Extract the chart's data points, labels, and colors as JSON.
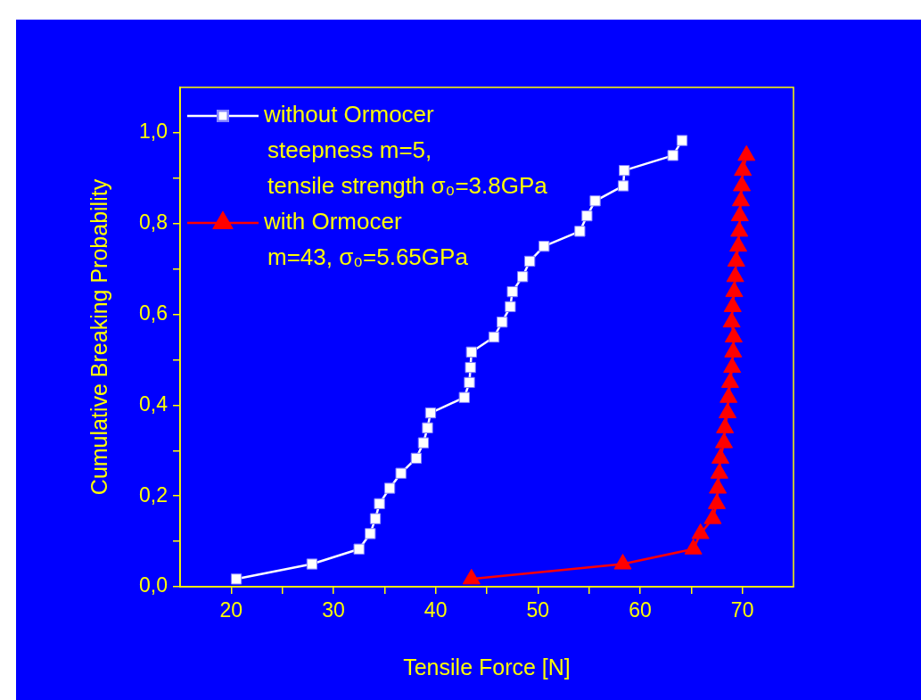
{
  "chart_data": {
    "type": "line",
    "xlabel": "Tensile Force [N]",
    "ylabel": "Cumulative Breaking Probability",
    "xlim": [
      15,
      75
    ],
    "xticks": [
      {
        "value": 20,
        "label": "20"
      },
      {
        "value": 25,
        "label": null
      },
      {
        "value": 30,
        "label": "30"
      },
      {
        "value": 35,
        "label": null
      },
      {
        "value": 40,
        "label": "40"
      },
      {
        "value": 45,
        "label": null
      },
      {
        "value": 50,
        "label": "50"
      },
      {
        "value": 55,
        "label": null
      },
      {
        "value": 60,
        "label": "60"
      },
      {
        "value": 65,
        "label": null
      },
      {
        "value": 70,
        "label": "70"
      }
    ],
    "ylim": [
      0,
      1.1
    ],
    "yticks": [
      {
        "value": 0,
        "label": "0,0"
      },
      {
        "value": 0.1,
        "label": null
      },
      {
        "value": 0.2,
        "label": "0,2"
      },
      {
        "value": 0.3,
        "label": null
      },
      {
        "value": 0.4,
        "label": "0,4"
      },
      {
        "value": 0.5,
        "label": null
      },
      {
        "value": 0.6,
        "label": "0,6"
      },
      {
        "value": 0.7,
        "label": null
      },
      {
        "value": 0.8,
        "label": "0,8"
      },
      {
        "value": 0.9,
        "label": null
      },
      {
        "value": 1.0,
        "label": "1,0"
      }
    ],
    "grid": false,
    "legend": "top left",
    "line_style": "solid",
    "annotations": [
      "steepness m=5,\ntensile strength σ₀=3.8GPa",
      "m=43, σ₀=5.65GPa"
    ],
    "series": [
      {
        "name": "without Ormocer",
        "color": "#ffffff",
        "marker": "square",
        "x": [
          20.5,
          27.9,
          32.5,
          33.6,
          34.1,
          34.5,
          35.5,
          36.6,
          38.1,
          38.8,
          39.2,
          39.5,
          42.8,
          43.3,
          43.4,
          43.5,
          45.7,
          46.5,
          47.3,
          47.5,
          48.5,
          49.2,
          50.6,
          54.1,
          54.8,
          55.6,
          58.35,
          58.45,
          63.2,
          64.1
        ],
        "values": [
          0.017,
          0.05,
          0.083,
          0.117,
          0.15,
          0.183,
          0.217,
          0.25,
          0.283,
          0.317,
          0.35,
          0.383,
          0.417,
          0.45,
          0.483,
          0.517,
          0.55,
          0.583,
          0.617,
          0.65,
          0.683,
          0.717,
          0.75,
          0.783,
          0.817,
          0.85,
          0.883,
          0.917,
          0.95,
          0.983
        ]
      },
      {
        "name": "with Ormocer",
        "color": "#ff0000",
        "marker": "triangle",
        "x": [
          43.5,
          58.3,
          65.2,
          65.9,
          67.1,
          67.5,
          67.6,
          67.75,
          67.85,
          68.2,
          68.3,
          68.55,
          68.65,
          68.8,
          69.0,
          69.1,
          69.15,
          68.95,
          69.05,
          69.2,
          69.3,
          69.4,
          69.6,
          69.7,
          69.75,
          69.85,
          69.95,
          70.05,
          70.4
        ],
        "values": [
          0.017,
          0.05,
          0.083,
          0.117,
          0.15,
          0.183,
          0.217,
          0.25,
          0.283,
          0.317,
          0.35,
          0.383,
          0.417,
          0.45,
          0.483,
          0.517,
          0.55,
          0.583,
          0.617,
          0.65,
          0.683,
          0.717,
          0.75,
          0.783,
          0.817,
          0.85,
          0.883,
          0.917,
          0.95
        ]
      }
    ]
  }
}
